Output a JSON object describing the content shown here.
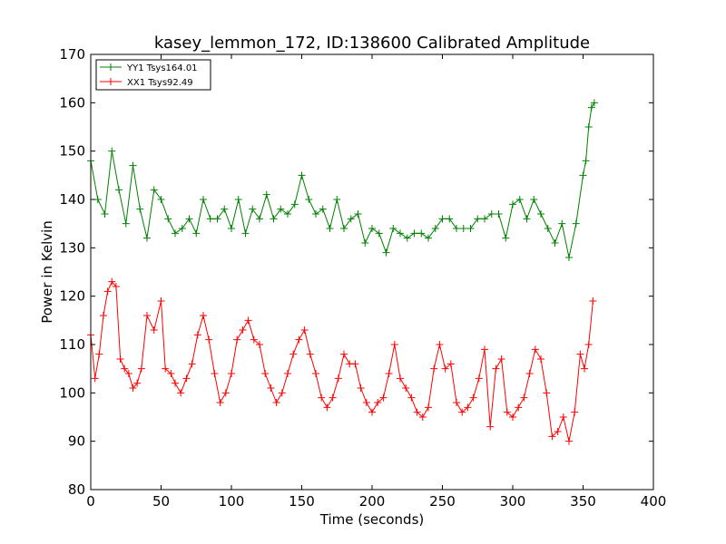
{
  "chart_data": {
    "type": "line",
    "title": "kasey_lemmon_172, ID:138600 Calibrated Amplitude",
    "xlabel": "Time (seconds)",
    "ylabel": "Power in Kelvin",
    "xlim": [
      0,
      400
    ],
    "ylim": [
      80,
      170
    ],
    "xticks": [
      0,
      50,
      100,
      150,
      200,
      250,
      300,
      350,
      400
    ],
    "yticks": [
      80,
      90,
      100,
      110,
      120,
      130,
      140,
      150,
      160,
      170
    ],
    "grid": false,
    "legend_position": "top-left",
    "marker": "+",
    "series": [
      {
        "name": "YY1 Tsys164.01",
        "color": "#008000",
        "x": [
          0,
          5,
          10,
          15,
          20,
          25,
          30,
          35,
          40,
          45,
          50,
          55,
          60,
          65,
          70,
          75,
          80,
          85,
          90,
          95,
          100,
          105,
          110,
          115,
          120,
          125,
          130,
          135,
          140,
          145,
          150,
          155,
          160,
          165,
          170,
          175,
          180,
          185,
          190,
          195,
          200,
          205,
          210,
          215,
          220,
          225,
          230,
          235,
          240,
          245,
          250,
          255,
          260,
          265,
          270,
          275,
          280,
          285,
          290,
          295,
          300,
          305,
          310,
          315,
          320,
          325,
          330,
          335,
          340,
          345,
          350,
          352,
          354,
          356,
          358
        ],
        "values": [
          148,
          140,
          137,
          150,
          142,
          135,
          147,
          138,
          132,
          142,
          140,
          136,
          133,
          134,
          136,
          133,
          140,
          136,
          136,
          138,
          134,
          140,
          133,
          138,
          136,
          141,
          136,
          138,
          137,
          139,
          145,
          140,
          137,
          138,
          134,
          140,
          134,
          136,
          137,
          131,
          134,
          133,
          129,
          134,
          133,
          132,
          133,
          133,
          132,
          134,
          136,
          136,
          134,
          134,
          134,
          136,
          136,
          137,
          137,
          132,
          139,
          140,
          136,
          140,
          137,
          134,
          131,
          135,
          128,
          135,
          145,
          148,
          155,
          159,
          160
        ]
      },
      {
        "name": "XX1 Tsys92.49",
        "color": "#ff0000",
        "x": [
          0,
          3,
          6,
          9,
          12,
          15,
          18,
          21,
          24,
          27,
          30,
          33,
          36,
          40,
          45,
          50,
          53,
          57,
          60,
          64,
          68,
          72,
          76,
          80,
          84,
          88,
          92,
          96,
          100,
          104,
          108,
          112,
          116,
          120,
          124,
          128,
          132,
          136,
          140,
          144,
          148,
          152,
          156,
          160,
          164,
          168,
          172,
          176,
          180,
          184,
          188,
          192,
          196,
          200,
          204,
          208,
          212,
          216,
          220,
          224,
          228,
          232,
          236,
          240,
          244,
          248,
          252,
          256,
          260,
          264,
          268,
          272,
          276,
          280,
          284,
          288,
          292,
          296,
          300,
          304,
          308,
          312,
          316,
          320,
          324,
          328,
          332,
          336,
          340,
          344,
          348,
          351,
          354,
          357
        ],
        "values": [
          112,
          103,
          108,
          116,
          121,
          123,
          122,
          107,
          105,
          104,
          101,
          102,
          105,
          116,
          113,
          119,
          105,
          104,
          102,
          100,
          103,
          106,
          112,
          116,
          111,
          104,
          98,
          100,
          104,
          111,
          113,
          115,
          111,
          110,
          104,
          101,
          98,
          100,
          104,
          108,
          111,
          113,
          108,
          104,
          99,
          97,
          99,
          103,
          108,
          106,
          106,
          101,
          98,
          96,
          98,
          99,
          104,
          110,
          103,
          101,
          99,
          96,
          95,
          97,
          105,
          110,
          105,
          106,
          98,
          96,
          97,
          99,
          103,
          109,
          93,
          105,
          107,
          96,
          95,
          97,
          99,
          104,
          109,
          107,
          100,
          91,
          92,
          95,
          90,
          96,
          108,
          105,
          110,
          119
        ]
      }
    ]
  }
}
